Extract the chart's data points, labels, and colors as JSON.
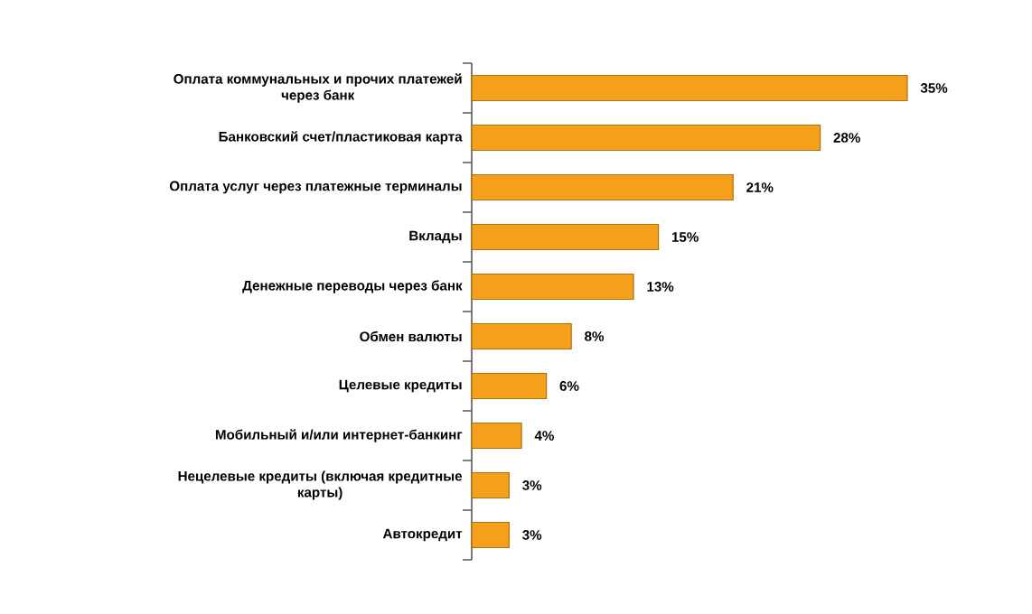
{
  "chart_data": {
    "type": "bar",
    "orientation": "horizontal",
    "color": "#f5a01a",
    "categories": [
      "Оплата коммунальных и прочих платежей через банк",
      "Банковский счет/пластиковая карта",
      "Оплата услуг через платежные терминалы",
      "Вклады",
      "Денежные переводы через банк",
      "Обмен валюты",
      "Целевые кредиты",
      "Мобильный и/или интернет-банкинг",
      "Нецелевые кредиты (включая кредитные карты)",
      "Автокредит"
    ],
    "values": [
      35,
      28,
      21,
      15,
      13,
      8,
      6,
      4,
      3,
      3
    ],
    "value_labels": [
      "35%",
      "28%",
      "21%",
      "15%",
      "13%",
      "8%",
      "6%",
      "4%",
      "3%",
      "3%"
    ]
  }
}
